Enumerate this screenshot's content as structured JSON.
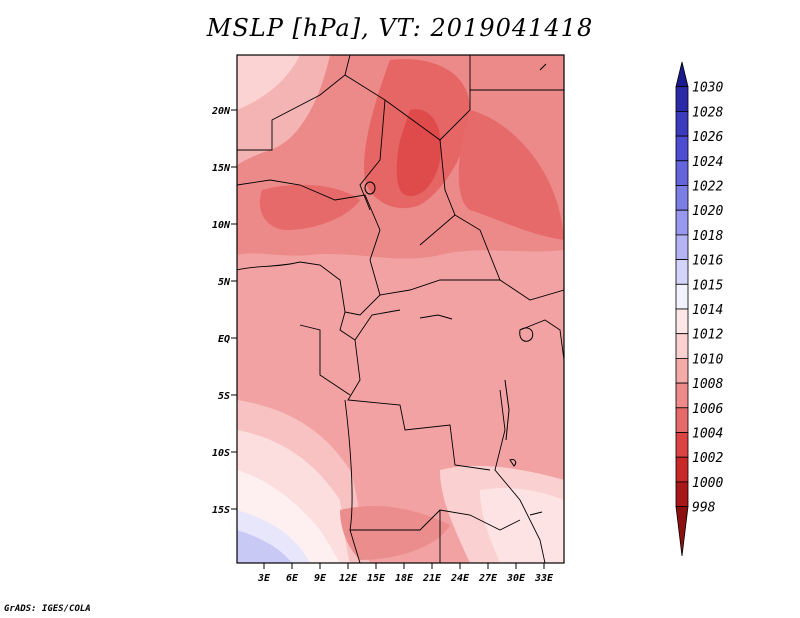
{
  "title": "MSLP [hPa], VT: 2019041418",
  "credit": "GrADS: IGES/COLA",
  "map": {
    "lat_labels": [
      "20N",
      "15N",
      "10N",
      "5N",
      "EQ",
      "5S",
      "10S",
      "15S"
    ],
    "lon_labels": [
      "3E",
      "6E",
      "9E",
      "12E",
      "15E",
      "18E",
      "21E",
      "24E",
      "27E",
      "30E",
      "33E"
    ],
    "field": "Mean sea level pressure",
    "dominant_colors": {
      "lowest_core": "#e04545",
      "low": "#e87070",
      "mid": "#f0a0a0",
      "high": "#fbd6d6",
      "highest": "#c9c9f6"
    }
  },
  "colorbar": {
    "labels": [
      "1030",
      "1028",
      "1026",
      "1024",
      "1022",
      "1020",
      "1018",
      "1016",
      "1015",
      "1014",
      "1012",
      "1010",
      "1008",
      "1006",
      "1004",
      "1002",
      "1000",
      "998"
    ],
    "colors": [
      "#1a1a8c",
      "#2a2aa8",
      "#3b3bbd",
      "#4d4dd2",
      "#6464dc",
      "#7d7de6",
      "#9898ee",
      "#b4b4f4",
      "#d4d4fa",
      "#f2f2fe",
      "#fde6e6",
      "#fbd0d0",
      "#f5aaaa",
      "#ee8a8a",
      "#e66a6a",
      "#dc4444",
      "#c82828",
      "#a81818",
      "#8c1010"
    ]
  }
}
